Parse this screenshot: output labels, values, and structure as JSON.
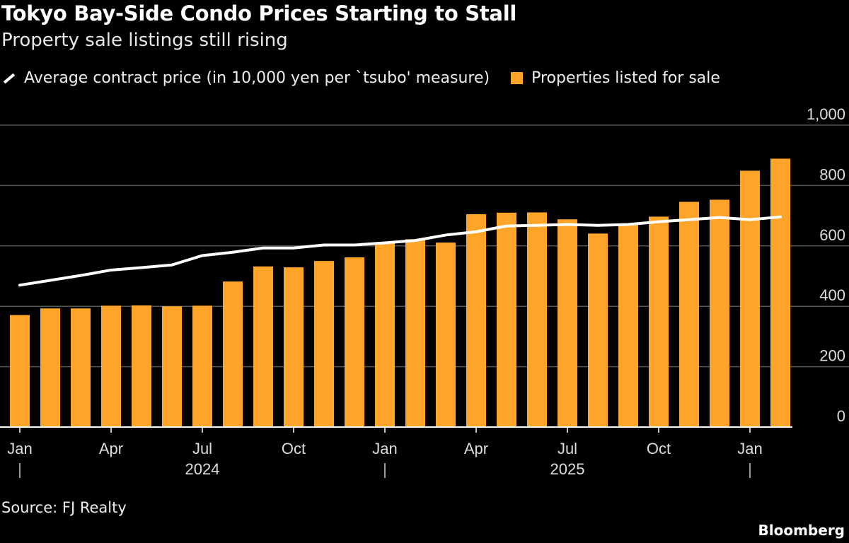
{
  "title": "Tokyo Bay-Side Condo Prices Starting to Stall",
  "subtitle": "Property sale listings still rising",
  "source": "Source: FJ Realty",
  "logo": "Bloomberg",
  "colors": {
    "bars": "#fea428",
    "line": "#ffffff",
    "background": "#000000",
    "grid": "#555555"
  },
  "chart_data": {
    "type": "bar+line",
    "legend_placement": "top-left",
    "grid": true,
    "ylim": [
      0,
      1000
    ],
    "y_ticks": [
      "0",
      "200",
      "400",
      "600",
      "800",
      "1,000"
    ],
    "y_tick_values": [
      0,
      200,
      400,
      600,
      800,
      1000
    ],
    "x_tick_labels": [
      {
        "label": "Jan",
        "month": "2024-01"
      },
      {
        "label": "Apr",
        "month": "2024-04"
      },
      {
        "label": "Jul",
        "month": "2024-07"
      },
      {
        "label": "Oct",
        "month": "2024-10"
      },
      {
        "label": "Jan",
        "month": "2025-01"
      },
      {
        "label": "Apr",
        "month": "2025-04"
      },
      {
        "label": "Jul",
        "month": "2025-07"
      },
      {
        "label": "Oct",
        "month": "2025-10"
      },
      {
        "label": "Jan",
        "month": "2026-01"
      }
    ],
    "year_labels": [
      {
        "label": "2024",
        "month": "2024-07"
      },
      {
        "label": "2025",
        "month": "2025-07"
      }
    ],
    "x": [
      "2024-01",
      "2024-02",
      "2024-03",
      "2024-04",
      "2024-05",
      "2024-06",
      "2024-07",
      "2024-08",
      "2024-09",
      "2024-10",
      "2024-11",
      "2024-12",
      "2025-01",
      "2025-02",
      "2025-03",
      "2025-04",
      "2025-05",
      "2025-06",
      "2025-07",
      "2025-08",
      "2025-09",
      "2025-10",
      "2025-11",
      "2025-12",
      "2026-01",
      "2026-02"
    ],
    "series": [
      {
        "name": "Average contract price (in 10,000 yen per `tsubo' measure)",
        "type": "line",
        "values": [
          470,
          486,
          502,
          520,
          528,
          537,
          568,
          579,
          593,
          593,
          603,
          603,
          610,
          618,
          636,
          647,
          666,
          668,
          671,
          668,
          671,
          680,
          687,
          694,
          687,
          696
        ]
      },
      {
        "name": "Properties listed for sale",
        "type": "bar",
        "values": [
          371,
          393,
          393,
          402,
          403,
          400,
          402,
          482,
          532,
          529,
          550,
          562,
          608,
          622,
          611,
          705,
          710,
          711,
          688,
          641,
          672,
          697,
          746,
          753,
          849,
          889
        ]
      }
    ]
  }
}
